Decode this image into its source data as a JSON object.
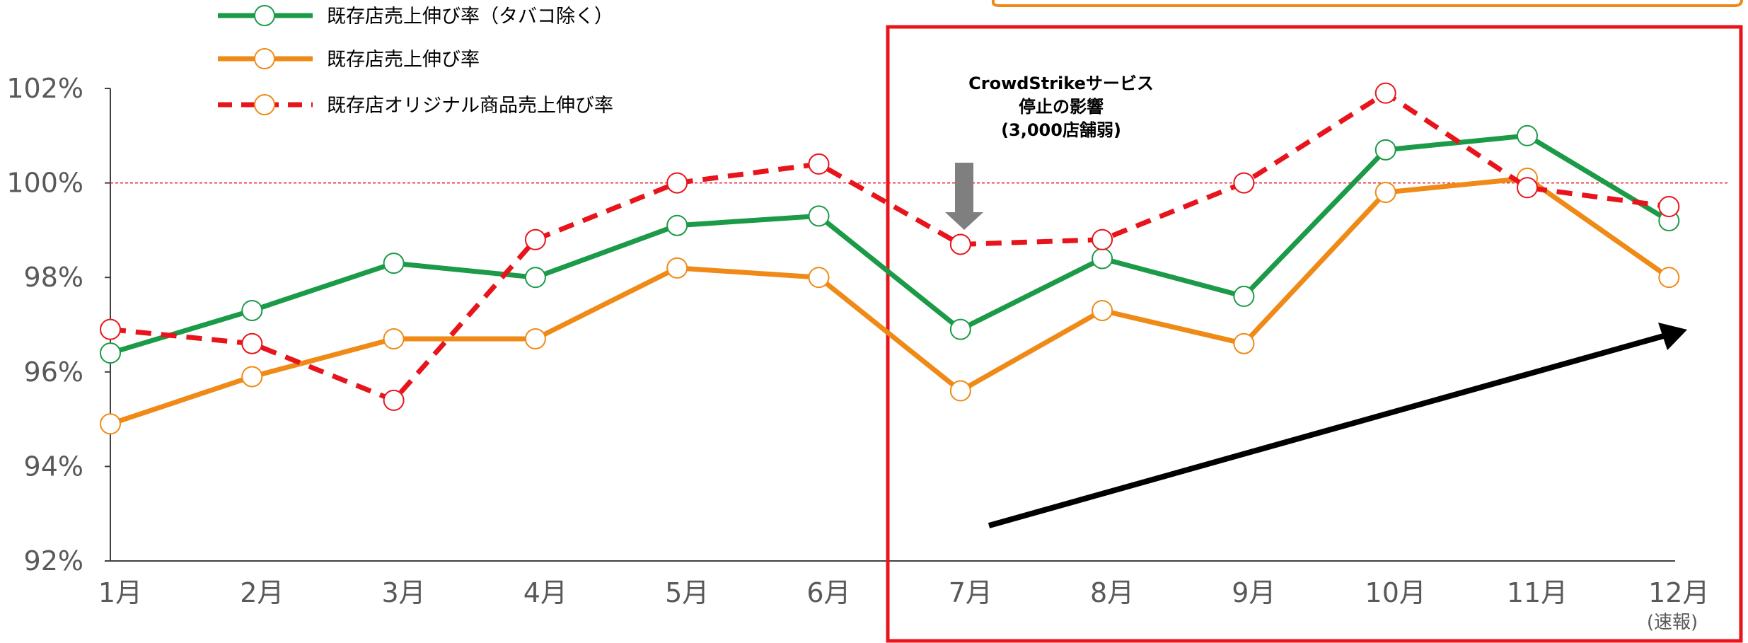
{
  "chart_data": {
    "type": "line",
    "categories": [
      "1月",
      "2月",
      "3月",
      "4月",
      "5月",
      "6月",
      "7月",
      "8月",
      "9月",
      "10月",
      "11月",
      "12月"
    ],
    "category_note": "(速報)",
    "ylim": [
      92,
      102
    ],
    "yticks": [
      92,
      94,
      96,
      98,
      100,
      102
    ],
    "ytick_labels": [
      "92%",
      "94%",
      "96%",
      "98%",
      "100%",
      "102%"
    ],
    "reference_line": 100,
    "grid": false,
    "legend_position": "top-left",
    "series": [
      {
        "name": "既存店売上伸び率（タバコ除く）",
        "color": "#1b9a47",
        "style": "solid",
        "marker_color": "#1b9a47",
        "values": [
          96.4,
          97.3,
          98.3,
          98.0,
          99.1,
          99.3,
          96.9,
          98.4,
          97.6,
          100.7,
          101.0,
          99.2
        ]
      },
      {
        "name": "既存店売上伸び率",
        "color": "#ef8a17",
        "style": "solid",
        "marker_color": "#ef8a17",
        "values": [
          94.9,
          95.9,
          96.7,
          96.7,
          98.2,
          98.0,
          95.6,
          97.3,
          96.6,
          99.8,
          100.1,
          98.0
        ]
      },
      {
        "name": "既存店オリジナル商品売上伸び率",
        "color": "#e8141b",
        "style": "dashed",
        "marker_color": "#e8141b",
        "legend_marker_color": "#ef8a17",
        "values": [
          96.9,
          96.6,
          95.4,
          98.8,
          100.0,
          100.4,
          98.7,
          98.8,
          100.0,
          101.9,
          99.9,
          99.5
        ]
      }
    ],
    "annotations": {
      "impact_lines": [
        "CrowdStrikeサービス",
        "停止の影響",
        "(3,000店舗弱)"
      ],
      "highlight_box_color": "#e8141b",
      "trend_arrow_color": "#000000",
      "callout_arrow_color": "#7f7f7f"
    }
  }
}
